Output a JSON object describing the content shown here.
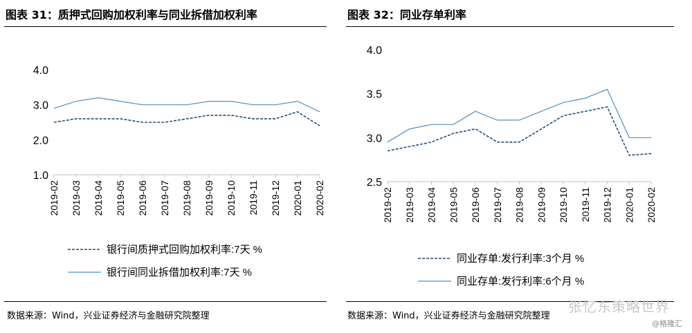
{
  "left": {
    "title": "图表 31：质押式回购加权利率与同业拆借加权利率",
    "source": "数据来源：Wind，兴业证券经济与金融研究院整理"
  },
  "right": {
    "title": "图表 32：同业存单利率",
    "source": "数据来源：Wind，兴业证券经济与金融研究院整理"
  },
  "watermark": {
    "main": "张忆东策略世界",
    "sub": "@格隆汇"
  },
  "colors": {
    "line": "#4a90c8",
    "dashed": "#1f4e79",
    "axis": "#bfbfbf"
  },
  "chart_data": [
    {
      "type": "line",
      "title": "图表 31：质押式回购加权利率与同业拆借加权利率",
      "categories": [
        "2019-02",
        "2019-03",
        "2019-04",
        "2019-05",
        "2019-06",
        "2019-07",
        "2019-08",
        "2019-09",
        "2019-10",
        "2019-11",
        "2019-12",
        "2020-01",
        "2020-02"
      ],
      "yticks": [
        "1.0",
        "2.0",
        "3.0",
        "4.0"
      ],
      "ylim": [
        1.0,
        4.0
      ],
      "series": [
        {
          "name": "银行间质押式回购加权利率:7天 %",
          "style": "dashed",
          "values": [
            2.5,
            2.6,
            2.6,
            2.6,
            2.5,
            2.5,
            2.6,
            2.7,
            2.7,
            2.6,
            2.6,
            2.8,
            2.4
          ]
        },
        {
          "name": "银行间同业拆借加权利率:7天 %",
          "style": "solid",
          "values": [
            2.9,
            3.1,
            3.2,
            3.1,
            3.0,
            3.0,
            3.0,
            3.1,
            3.1,
            3.0,
            3.0,
            3.1,
            2.8
          ]
        }
      ],
      "legend_position": "bottom"
    },
    {
      "type": "line",
      "title": "图表 32：同业存单利率",
      "categories": [
        "2019-02",
        "2019-03",
        "2019-04",
        "2019-05",
        "2019-06",
        "2019-07",
        "2019-08",
        "2019-09",
        "2019-10",
        "2019-11",
        "2019-12",
        "2020-01",
        "2020-02"
      ],
      "yticks": [
        "2.5",
        "3.0",
        "3.5",
        "4.0"
      ],
      "ylim": [
        2.5,
        4.0
      ],
      "series": [
        {
          "name": "同业存单:发行利率:3个月 %",
          "style": "dashed",
          "values": [
            2.85,
            2.9,
            2.95,
            3.05,
            3.1,
            2.95,
            2.95,
            3.1,
            3.25,
            3.3,
            3.35,
            2.8,
            2.82
          ]
        },
        {
          "name": "同业存单:发行利率:6个月 %",
          "style": "solid",
          "values": [
            2.95,
            3.1,
            3.15,
            3.15,
            3.3,
            3.2,
            3.2,
            3.3,
            3.4,
            3.45,
            3.55,
            3.0,
            3.0
          ]
        }
      ],
      "legend_position": "bottom"
    }
  ]
}
